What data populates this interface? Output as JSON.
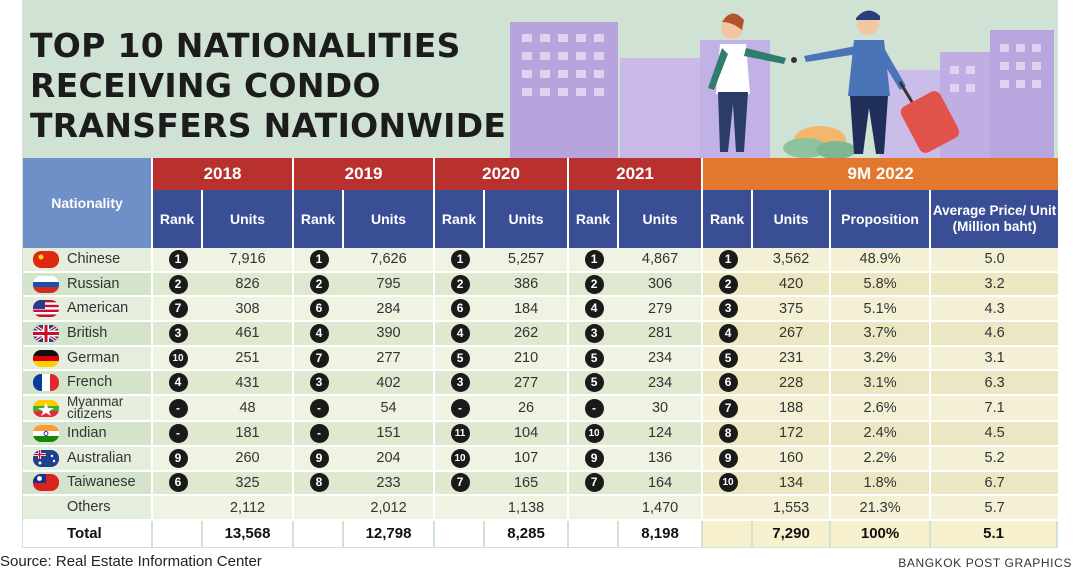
{
  "title_lines": [
    "TOP 10 NATIONALITIES",
    "RECEIVING CONDO",
    "TRANSFERS NATIONWIDE"
  ],
  "source": "Source: Real Estate Information Center",
  "credit": "BANGKOK POST GRAPHICS",
  "colors": {
    "header_red": "#b8312f",
    "header_orange": "#e2782e",
    "subheader_navy": "#3a4e96",
    "nationality_header": "#6e8fc7",
    "panel_green": "#cfe2d4"
  },
  "chart_data": {
    "type": "table",
    "title": "TOP 10 NATIONALITIES RECEIVING CONDO TRANSFERS NATIONWIDE",
    "nationality_header": "Nationality",
    "periods": [
      "2018",
      "2019",
      "2020",
      "2021",
      "9M 2022"
    ],
    "subheaders": {
      "rank": "Rank",
      "units": "Units",
      "proposition": "Proposition",
      "avg_price": "Average Price/ Unit (Million baht)"
    },
    "rows": [
      {
        "name": "Chinese",
        "flag": "china-flag-icon",
        "r2018": "1",
        "u2018": "7,916",
        "r2019": "1",
        "u2019": "7,626",
        "r2020": "1",
        "u2020": "5,257",
        "r2021": "1",
        "u2021": "4,867",
        "r2022": "1",
        "u2022": "3,562",
        "prop": "48.9%",
        "price": "5.0"
      },
      {
        "name": "Russian",
        "flag": "russia-flag-icon",
        "r2018": "2",
        "u2018": "826",
        "r2019": "2",
        "u2019": "795",
        "r2020": "2",
        "u2020": "386",
        "r2021": "2",
        "u2021": "306",
        "r2022": "2",
        "u2022": "420",
        "prop": "5.8%",
        "price": "3.2"
      },
      {
        "name": "American",
        "flag": "usa-flag-icon",
        "r2018": "7",
        "u2018": "308",
        "r2019": "6",
        "u2019": "284",
        "r2020": "6",
        "u2020": "184",
        "r2021": "4",
        "u2021": "279",
        "r2022": "3",
        "u2022": "375",
        "prop": "5.1%",
        "price": "4.3"
      },
      {
        "name": "British",
        "flag": "uk-flag-icon",
        "r2018": "3",
        "u2018": "461",
        "r2019": "4",
        "u2019": "390",
        "r2020": "4",
        "u2020": "262",
        "r2021": "3",
        "u2021": "281",
        "r2022": "4",
        "u2022": "267",
        "prop": "3.7%",
        "price": "4.6"
      },
      {
        "name": "German",
        "flag": "germany-flag-icon",
        "r2018": "10",
        "u2018": "251",
        "r2019": "7",
        "u2019": "277",
        "r2020": "5",
        "u2020": "210",
        "r2021": "5",
        "u2021": "234",
        "r2022": "5",
        "u2022": "231",
        "prop": "3.2%",
        "price": "3.1"
      },
      {
        "name": "French",
        "flag": "france-flag-icon",
        "r2018": "4",
        "u2018": "431",
        "r2019": "3",
        "u2019": "402",
        "r2020": "3",
        "u2020": "277",
        "r2021": "5",
        "u2021": "234",
        "r2022": "6",
        "u2022": "228",
        "prop": "3.1%",
        "price": "6.3"
      },
      {
        "name": "Myanmar citizens",
        "flag": "myanmar-flag-icon",
        "r2018": "-",
        "u2018": "48",
        "r2019": "-",
        "u2019": "54",
        "r2020": "-",
        "u2020": "26",
        "r2021": "-",
        "u2021": "30",
        "r2022": "7",
        "u2022": "188",
        "prop": "2.6%",
        "price": "7.1"
      },
      {
        "name": "Indian",
        "flag": "india-flag-icon",
        "r2018": "-",
        "u2018": "181",
        "r2019": "-",
        "u2019": "151",
        "r2020": "11",
        "u2020": "104",
        "r2021": "10",
        "u2021": "124",
        "r2022": "8",
        "u2022": "172",
        "prop": "2.4%",
        "price": "4.5"
      },
      {
        "name": "Australian",
        "flag": "australia-flag-icon",
        "r2018": "9",
        "u2018": "260",
        "r2019": "9",
        "u2019": "204",
        "r2020": "10",
        "u2020": "107",
        "r2021": "9",
        "u2021": "136",
        "r2022": "9",
        "u2022": "160",
        "prop": "2.2%",
        "price": "5.2"
      },
      {
        "name": "Taiwanese",
        "flag": "taiwan-flag-icon",
        "r2018": "6",
        "u2018": "325",
        "r2019": "8",
        "u2019": "233",
        "r2020": "7",
        "u2020": "165",
        "r2021": "7",
        "u2021": "164",
        "r2022": "10",
        "u2022": "134",
        "prop": "1.8%",
        "price": "6.7"
      },
      {
        "name": "Others",
        "flag": "",
        "r2018": "",
        "u2018": "2,112",
        "r2019": "",
        "u2019": "2,012",
        "r2020": "",
        "u2020": "1,138",
        "r2021": "",
        "u2021": "1,470",
        "r2022": "",
        "u2022": "1,553",
        "prop": "21.3%",
        "price": "5.7"
      }
    ],
    "total": {
      "label": "Total",
      "u2018": "13,568",
      "u2019": "12,798",
      "u2020": "8,285",
      "u2021": "8,198",
      "u2022": "7,290",
      "prop": "100%",
      "price": "5.1"
    }
  }
}
